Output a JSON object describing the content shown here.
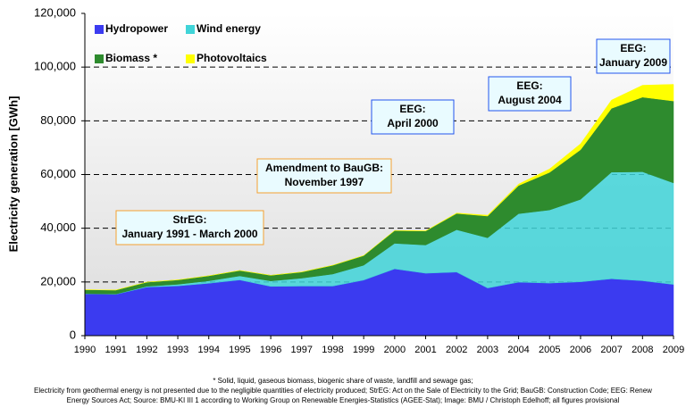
{
  "chart_data": {
    "type": "stacked_area",
    "y_label": "Electricity generation [GWh]",
    "x": [
      1990,
      1991,
      1992,
      1993,
      1994,
      1995,
      1996,
      1997,
      1998,
      1999,
      2000,
      2001,
      2002,
      2003,
      2004,
      2005,
      2006,
      2007,
      2008,
      2009
    ],
    "xlim": [
      1990,
      2009
    ],
    "xticks": [
      1990,
      1991,
      1992,
      1993,
      1994,
      1995,
      1996,
      1997,
      1998,
      1999,
      2000,
      2001,
      2002,
      2003,
      2004,
      2005,
      2006,
      2007,
      2008,
      2009
    ],
    "ylim": [
      0,
      120000
    ],
    "yticks": [
      0,
      {
        "value": 20000,
        "label": "20,000"
      },
      {
        "value": 40000,
        "label": "40,000"
      },
      {
        "value": 60000,
        "label": "60,000"
      },
      {
        "value": 80000,
        "label": "80,000"
      },
      {
        "value": 100000,
        "label": "100,000"
      },
      {
        "value": 120000,
        "label": "120,000"
      }
    ],
    "grid": true,
    "series": [
      {
        "name": "Hydropower",
        "color": "#3b3bf0",
        "values": [
          15580,
          15402,
          18091,
          18526,
          19501,
          20747,
          18340,
          18453,
          18452,
          20686,
          24867,
          23241,
          23662,
          17722,
          19910,
          19576,
          20042,
          21169,
          20446,
          19059
        ]
      },
      {
        "name": "Wind energy",
        "color": "#40d4d8",
        "values": [
          71,
          100,
          275,
          600,
          909,
          1500,
          2032,
          2966,
          4489,
          5528,
          9513,
          10509,
          15786,
          18713,
          25509,
          27229,
          30710,
          39713,
          40574,
          37809
        ]
      },
      {
        "name": "Biomass *",
        "color": "#2e8b2e",
        "values": [
          1435,
          1471,
          1558,
          1635,
          1875,
          2010,
          2098,
          2273,
          3256,
          3585,
          4731,
          5214,
          6048,
          8102,
          10471,
          13980,
          18474,
          23757,
          27791,
          30500
        ]
      },
      {
        "name": "Photovoltaics",
        "color": "#ffff00",
        "values": [
          1,
          2,
          3,
          6,
          8,
          11,
          16,
          26,
          32,
          42,
          64,
          76,
          162,
          313,
          556,
          1282,
          2220,
          3075,
          4420,
          6200
        ]
      }
    ],
    "annotations": [
      {
        "lines": [
          "StrEG:",
          "January 1991 - March 2000"
        ]
      },
      {
        "lines": [
          "Amendment to BauGB:",
          "November 1997"
        ]
      },
      {
        "lines": [
          "EEG:",
          "April 2000"
        ]
      },
      {
        "lines": [
          "EEG:",
          "August 2004"
        ]
      },
      {
        "lines": [
          "EEG:",
          "January 2009"
        ]
      }
    ],
    "footnotes": [
      "* Solid, liquid, gaseous biomass, biogenic share of waste, landfill and sewage gas;",
      "Electricity from geothermal energy is not presented due to the negligible quantities of electricity produced; StrEG: Act on the Sale of Electricity to the Grid; BauGB: Construction Code; EEG: Renew",
      "Energy Sources Act; Source: BMU-KI III 1 according to Working Group on Renewable Energies-Statistics (AGEE-Stat); Image: BMU / Christoph Edelhoff; all figures provisional"
    ]
  }
}
